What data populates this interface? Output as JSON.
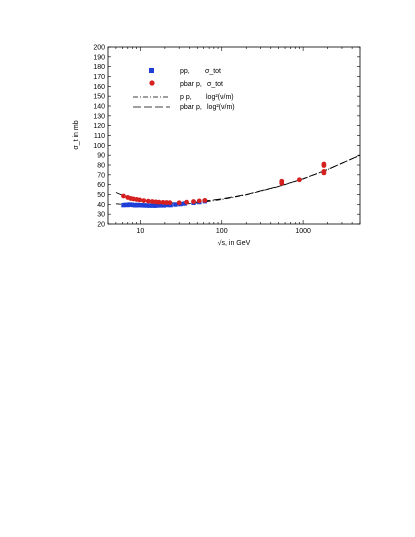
{
  "chart_data": {
    "type": "scatter",
    "xscale": "log",
    "xlim": [
      4,
      5000
    ],
    "ylim": [
      20,
      200
    ],
    "yticks": [
      20,
      30,
      40,
      50,
      60,
      70,
      80,
      90,
      100,
      110,
      120,
      130,
      140,
      150,
      160,
      170,
      180,
      190,
      200
    ],
    "xticks": [
      10,
      100,
      1000
    ],
    "xtick_labels": [
      "10",
      "100",
      "1000"
    ],
    "ylabel": "σ_t in mb",
    "xlabel": "√s, in GeV",
    "grid": false,
    "legend_position": "top-left",
    "series": [
      {
        "name": "pp, σ_tot",
        "marker": "square",
        "color": "#1f3fd6",
        "x": [
          6.2,
          6.6,
          7.0,
          7.4,
          7.8,
          8.2,
          8.7,
          9.2,
          9.8,
          10.5,
          11.2,
          12.0,
          13.0,
          14.0,
          15.0,
          16.0,
          17.0,
          18.0,
          19.4,
          21.0,
          23.5,
          27.0,
          31.0,
          35.0,
          45.0,
          53.0,
          62.0
        ],
        "y": [
          39.2,
          39.5,
          39.3,
          39.8,
          39.6,
          39.3,
          39.0,
          39.4,
          39.1,
          39.0,
          38.9,
          38.8,
          38.7,
          38.8,
          38.6,
          38.9,
          38.9,
          39.0,
          38.9,
          39.3,
          39.2,
          39.8,
          40.2,
          40.8,
          41.6,
          42.3,
          43.2
        ]
      },
      {
        "name": "pbar p, σ_tot",
        "marker": "circle",
        "color": "#d62020",
        "x": [
          6.2,
          7.0,
          7.6,
          8.2,
          9.0,
          9.8,
          11.0,
          12.5,
          14.0,
          15.5,
          17.0,
          19.0,
          21.0,
          23.0,
          30.0,
          37.0,
          45.0,
          53.0,
          62.0,
          546,
          546,
          900,
          1800,
          1800,
          1800,
          1800
        ],
        "y": [
          48.5,
          47.0,
          46.0,
          45.5,
          45.0,
          44.5,
          43.8,
          43.3,
          42.8,
          42.5,
          42.2,
          42.0,
          41.8,
          41.7,
          41.6,
          42.2,
          42.8,
          43.5,
          44.0,
          61.5,
          63.5,
          65.0,
          72.0,
          73.5,
          79.5,
          81.0
        ]
      },
      {
        "name": "p p, log²(ν/m)",
        "line_style": "dash-dot",
        "color": "#000000",
        "x": [
          5,
          7,
          10,
          15,
          20,
          30,
          50,
          100,
          200,
          500,
          1000,
          2000,
          5000
        ],
        "y": [
          40.5,
          39.6,
          39.0,
          38.8,
          38.9,
          39.6,
          41.5,
          44.9,
          49.7,
          58.0,
          65.9,
          75.3,
          90.0
        ]
      },
      {
        "name": "pbar p, log²(ν/m)",
        "line_style": "long-dash",
        "color": "#000000",
        "x": [
          5,
          7,
          10,
          15,
          20,
          30,
          50,
          100,
          200,
          500,
          1000,
          2000,
          5000
        ],
        "y": [
          52.0,
          47.0,
          44.0,
          42.2,
          41.6,
          41.4,
          42.5,
          45.5,
          50.0,
          58.2,
          66.0,
          75.4,
          90.0
        ]
      }
    ],
    "legend": {
      "entries": [
        {
          "label": "pp,",
          "sub": "σ_tot"
        },
        {
          "label": "pbar p,",
          "sub": "σ_tot"
        },
        {
          "label": "p p,",
          "sub": "log²(ν/m)"
        },
        {
          "label": "pbar p,",
          "sub": "log²(ν/m)"
        }
      ]
    }
  }
}
